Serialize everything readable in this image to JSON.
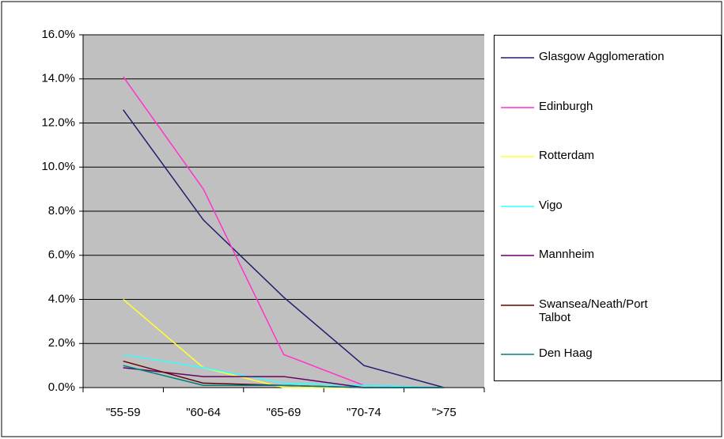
{
  "chart_data": {
    "type": "line",
    "categories": [
      "\"55-59",
      "\"60-64",
      "\"65-69",
      "\"70-74",
      "\">75"
    ],
    "series": [
      {
        "name": "Glasgow Agglomeration",
        "color": "#1f1f6e",
        "values": [
          12.6,
          7.6,
          4.1,
          1.0,
          0.0
        ]
      },
      {
        "name": "Edinburgh",
        "color": "#ff33cc",
        "values": [
          14.1,
          9.0,
          1.5,
          0.1,
          0.0
        ]
      },
      {
        "name": "Rotterdam",
        "color": "#ffff33",
        "values": [
          4.0,
          0.9,
          0.0,
          0.0,
          0.0
        ]
      },
      {
        "name": "Vigo",
        "color": "#33ffff",
        "values": [
          1.5,
          0.9,
          0.2,
          0.1,
          0.0
        ]
      },
      {
        "name": "Mannheim",
        "color": "#660066",
        "values": [
          0.9,
          0.5,
          0.5,
          0.0,
          0.0
        ]
      },
      {
        "name": "Swansea/Neath/Port Talbot",
        "color": "#660000",
        "values": [
          1.2,
          0.2,
          0.1,
          0.0,
          0.0
        ]
      },
      {
        "name": "Den Haag",
        "color": "#008080",
        "values": [
          1.0,
          0.1,
          0.1,
          0.0,
          0.0
        ]
      }
    ],
    "ylim": [
      0,
      16
    ],
    "yticks": [
      {
        "value": 0,
        "label": "0.0%"
      },
      {
        "value": 2,
        "label": "2.0%"
      },
      {
        "value": 4,
        "label": "4.0%"
      },
      {
        "value": 6,
        "label": "6.0%"
      },
      {
        "value": 8,
        "label": "8.0%"
      },
      {
        "value": 10,
        "label": "10.0%"
      },
      {
        "value": 12,
        "label": "12.0%"
      },
      {
        "value": 14,
        "label": "14.0%"
      },
      {
        "value": 16,
        "label": "16.0%"
      }
    ],
    "grid": true,
    "plot_background": "#c0c0c0",
    "legend": "right"
  }
}
